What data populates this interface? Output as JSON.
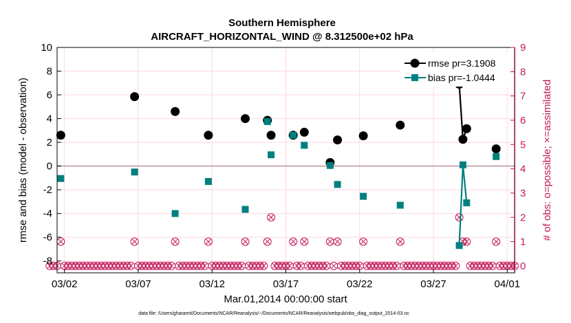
{
  "chart_data": {
    "type": "line",
    "title": "Southern Hemisphere",
    "subtitle": "AIRCRAFT_HORIZONTAL_WIND @ 8.312500e+02 hPa",
    "xlabel": "Mar.01,2014 00:00:00 start",
    "ylabel": "rmse and bias (model - observation)",
    "y2label": "# of obs: o=possible; ×=assimilated",
    "footnote": "data file: /Users/gharamti/Documents/NCAR/Reanalysis/~/Documents/NCAR/Reanalysis/webpub/obs_diag_output_2014-03.nc",
    "xlim": [
      0.5,
      31.5
    ],
    "ylim": [
      -9,
      10
    ],
    "y2lim": [
      -0.2857,
      9
    ],
    "x_ticks": [
      {
        "value": 1.0,
        "label": "03/02"
      },
      {
        "value": 6.0,
        "label": "03/07"
      },
      {
        "value": 11.0,
        "label": "03/12"
      },
      {
        "value": 16.0,
        "label": "03/17"
      },
      {
        "value": 21.0,
        "label": "03/22"
      },
      {
        "value": 26.0,
        "label": "03/27"
      },
      {
        "value": 31.0,
        "label": "04/01"
      }
    ],
    "y_ticks": [
      "10",
      "8",
      "6",
      "4",
      "2",
      "0",
      "-2",
      "-4",
      "-6",
      "-8"
    ],
    "y2_ticks": [
      "9",
      "8",
      "7",
      "6",
      "5",
      "4",
      "3",
      "2",
      "1",
      "0"
    ],
    "legend": {
      "position": "top-right",
      "entries": [
        "rmse pr=3.1908",
        "bias pr=-1.0444"
      ]
    },
    "colors": {
      "rmse": "#000000",
      "bias": "#008080",
      "obs": "#c2185b",
      "zero_line": "#c8a8b4",
      "grid": "#ffd6e0"
    },
    "series": [
      {
        "name": "rmse",
        "points": [
          {
            "x": 0.75,
            "y": 2.6
          },
          {
            "x": 5.75,
            "y": 5.85
          },
          {
            "x": 8.5,
            "y": 4.6
          },
          {
            "x": 10.75,
            "y": 2.6
          },
          {
            "x": 13.25,
            "y": 4.0
          },
          {
            "x": 14.75,
            "y": 3.85
          },
          {
            "x": 15.0,
            "y": 2.6
          },
          {
            "x": 16.5,
            "y": 2.6
          },
          {
            "x": 17.25,
            "y": 2.85
          },
          {
            "x": 19.0,
            "y": 0.3
          },
          {
            "x": 19.5,
            "y": 2.2
          },
          {
            "x": 21.25,
            "y": 2.55
          },
          {
            "x": 23.75,
            "y": 3.45
          },
          {
            "x": 27.75,
            "y": 6.9
          },
          {
            "x": 28.0,
            "y": 2.25
          },
          {
            "x": 28.25,
            "y": 3.15
          },
          {
            "x": 30.25,
            "y": 1.45
          }
        ],
        "connected": [
          [
            27.75,
            28.0,
            28.25
          ]
        ]
      },
      {
        "name": "bias",
        "points": [
          {
            "x": 0.75,
            "y": -1.05
          },
          {
            "x": 5.75,
            "y": -0.5
          },
          {
            "x": 8.5,
            "y": -4.0
          },
          {
            "x": 10.75,
            "y": -1.3
          },
          {
            "x": 13.25,
            "y": -3.65
          },
          {
            "x": 14.75,
            "y": 3.75
          },
          {
            "x": 15.0,
            "y": 0.95
          },
          {
            "x": 16.5,
            "y": 2.6
          },
          {
            "x": 17.25,
            "y": 1.75
          },
          {
            "x": 19.0,
            "y": 0.05
          },
          {
            "x": 19.5,
            "y": -1.55
          },
          {
            "x": 21.25,
            "y": -2.55
          },
          {
            "x": 23.75,
            "y": -3.3
          },
          {
            "x": 27.75,
            "y": -6.7
          },
          {
            "x": 28.0,
            "y": 0.1
          },
          {
            "x": 28.25,
            "y": -3.1
          },
          {
            "x": 30.25,
            "y": 0.8
          }
        ],
        "connected": [
          [
            27.75,
            28.0,
            28.25
          ]
        ]
      },
      {
        "name": "obs_possible",
        "axis": "right",
        "x_start": 0.0,
        "x_step": 0.25,
        "count": 127,
        "default": 0,
        "ones": [
          0.75,
          5.75,
          8.5,
          10.75,
          13.25,
          14.75,
          16.5,
          17.25,
          19.0,
          19.5,
          21.25,
          23.75,
          28.0,
          28.25,
          30.25
        ],
        "twos": [
          15.0,
          27.75
        ]
      },
      {
        "name": "obs_assimilated",
        "axis": "right",
        "x_start": 0.0,
        "x_step": 0.25,
        "count": 127,
        "default": 0,
        "ones": [
          0.75,
          5.75,
          8.5,
          10.75,
          13.25,
          14.75,
          16.5,
          17.25,
          19.0,
          19.5,
          21.25,
          23.75,
          28.0,
          28.25,
          30.25
        ],
        "twos": [
          15.0,
          27.75
        ]
      }
    ]
  }
}
